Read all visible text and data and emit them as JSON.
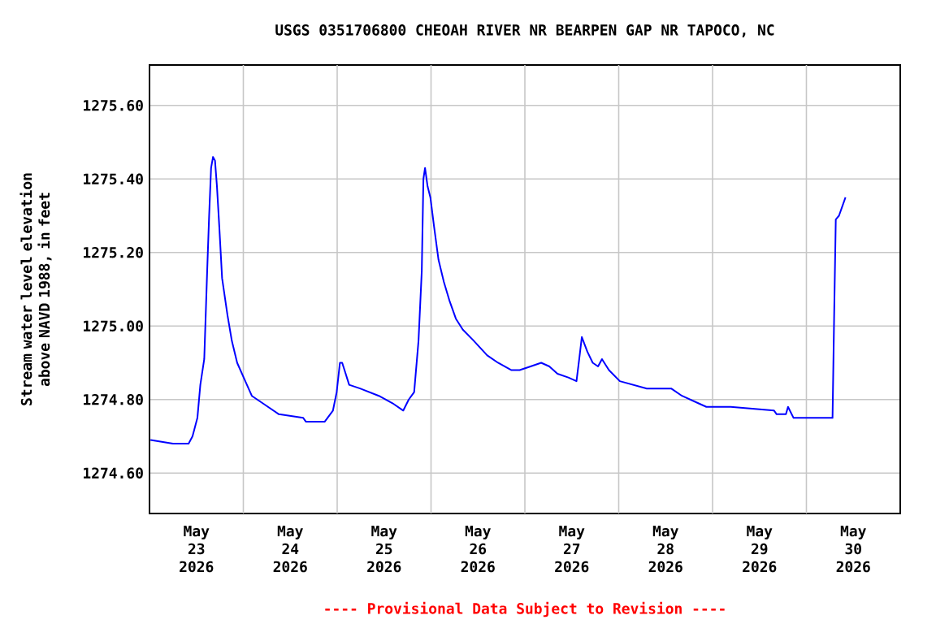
{
  "chart_data": {
    "type": "line",
    "title": "USGS 0351706800 CHEOAH RIVER NR BEARPEN GAP NR TAPOCO, NC",
    "ylabel": "Stream water level elevation above NAVD 1988, in feet",
    "annotations": [
      "---- Provisional Data Subject to Revision ----"
    ],
    "x": [
      "2026-05-23T00:15",
      "2026-05-23T06:00",
      "2026-05-23T10:00",
      "2026-05-23T11:00",
      "2026-05-23T12:15",
      "2026-05-23T13:00",
      "2026-05-23T14:00",
      "2026-05-23T14:45",
      "2026-05-23T15:15",
      "2026-05-23T15:45",
      "2026-05-23T16:15",
      "2026-05-23T16:45",
      "2026-05-23T17:15",
      "2026-05-23T17:51",
      "2026-05-23T18:34",
      "2026-05-23T19:56",
      "2026-05-23T21:03",
      "2026-05-23T22:25",
      "2026-05-24T00:05",
      "2026-05-24T02:10",
      "2026-05-24T04:56",
      "2026-05-24T09:05",
      "2026-05-24T15:19",
      "2026-05-24T15:59",
      "2026-05-24T20:50",
      "2026-05-24T22:55",
      "2026-05-24T23:52",
      "2026-05-25T00:42",
      "2026-05-25T01:17",
      "2026-05-25T03:04",
      "2026-05-25T05:51",
      "2026-05-25T10:40",
      "2026-05-25T14:09",
      "2026-05-25T16:54",
      "2026-05-25T18:18",
      "2026-05-25T19:41",
      "2026-05-25T20:48",
      "2026-05-25T21:38",
      "2026-05-25T22:03",
      "2026-05-25T22:28",
      "2026-05-25T23:07",
      "2026-05-25T23:50",
      "2026-05-26T00:47",
      "2026-05-26T01:55",
      "2026-05-26T03:17",
      "2026-05-26T04:41",
      "2026-05-26T06:21",
      "2026-05-26T08:08",
      "2026-05-26T10:55",
      "2026-05-26T14:22",
      "2026-05-26T17:08",
      "2026-05-26T20:35",
      "2026-05-26T22:40",
      "2026-05-27T01:27",
      "2026-05-27T04:11",
      "2026-05-27T06:16",
      "2026-05-27T08:20",
      "2026-05-27T11:07",
      "2026-05-27T13:12",
      "2026-05-27T13:54",
      "2026-05-27T14:34",
      "2026-05-27T15:59",
      "2026-05-27T17:21",
      "2026-05-27T18:43",
      "2026-05-27T19:43",
      "2026-05-27T21:30",
      "2026-05-28T00:17",
      "2026-05-28T07:11",
      "2026-05-28T13:25",
      "2026-05-28T16:11",
      "2026-05-28T20:20",
      "2026-05-28T22:25",
      "2026-05-29T04:38",
      "2026-05-29T15:44",
      "2026-05-29T16:23",
      "2026-05-29T18:46",
      "2026-05-29T19:18",
      "2026-05-29T20:43",
      "2026-05-30T06:41",
      "2026-05-30T07:05",
      "2026-05-30T07:31",
      "2026-05-30T08:20",
      "2026-05-30T10:00"
    ],
    "series": [
      {
        "color": "#0000ff",
        "values": [
          1274.69,
          1274.68,
          1274.68,
          1274.7,
          1274.75,
          1274.84,
          1274.91,
          1275.15,
          1275.3,
          1275.43,
          1275.46,
          1275.45,
          1275.38,
          1275.27,
          1275.13,
          1275.03,
          1274.96,
          1274.9,
          1274.86,
          1274.81,
          1274.79,
          1274.76,
          1274.75,
          1274.74,
          1274.74,
          1274.77,
          1274.82,
          1274.9,
          1274.9,
          1274.84,
          1274.83,
          1274.81,
          1274.79,
          1274.77,
          1274.8,
          1274.82,
          1274.96,
          1275.15,
          1275.4,
          1275.43,
          1275.38,
          1275.35,
          1275.27,
          1275.18,
          1275.12,
          1275.07,
          1275.02,
          1274.99,
          1274.96,
          1274.92,
          1274.9,
          1274.88,
          1274.88,
          1274.89,
          1274.9,
          1274.89,
          1274.87,
          1274.86,
          1274.85,
          1274.91,
          1274.97,
          1274.93,
          1274.9,
          1274.89,
          1274.91,
          1274.88,
          1274.85,
          1274.83,
          1274.83,
          1274.81,
          1274.79,
          1274.78,
          1274.78,
          1274.77,
          1274.76,
          1274.76,
          1274.78,
          1274.75,
          1274.75,
          1275.02,
          1275.29,
          1275.3,
          1275.35
        ]
      }
    ],
    "xlim": [
      "2026-05-23T00:00",
      "2026-05-31T00:00"
    ],
    "xticks": [
      {
        "value": "2026-05-23T12:00",
        "label": "May 23 2026"
      },
      {
        "value": "2026-05-24T12:00",
        "label": "May 24 2026"
      },
      {
        "value": "2026-05-25T12:00",
        "label": "May 25 2026"
      },
      {
        "value": "2026-05-26T12:00",
        "label": "May 26 2026"
      },
      {
        "value": "2026-05-27T12:00",
        "label": "May 27 2026"
      },
      {
        "value": "2026-05-28T12:00",
        "label": "May 28 2026"
      },
      {
        "value": "2026-05-29T12:00",
        "label": "May 29 2026"
      },
      {
        "value": "2026-05-30T12:00",
        "label": "May 30 2026"
      },
      {
        "value": "2026-05-24T00:00",
        "label": null
      },
      {
        "value": "2026-05-25T00:00",
        "label": null
      },
      {
        "value": "2026-05-26T00:00",
        "label": null
      },
      {
        "value": "2026-05-27T00:00",
        "label": null
      },
      {
        "value": "2026-05-28T00:00",
        "label": null
      },
      {
        "value": "2026-05-29T00:00",
        "label": null
      },
      {
        "value": "2026-05-30T00:00",
        "label": null
      }
    ],
    "ylim": [
      1274.49,
      1275.71
    ],
    "yticks": [
      {
        "value": 1274.6,
        "label": "1274.60"
      },
      {
        "value": 1274.8,
        "label": "1274.80"
      },
      {
        "value": 1275.0,
        "label": "1275.00"
      },
      {
        "value": 1275.2,
        "label": "1275.20"
      },
      {
        "value": 1275.4,
        "label": "1275.40"
      },
      {
        "value": 1275.6,
        "label": "1275.60"
      }
    ],
    "grid": true,
    "marker": "none",
    "line_style": "solid"
  }
}
